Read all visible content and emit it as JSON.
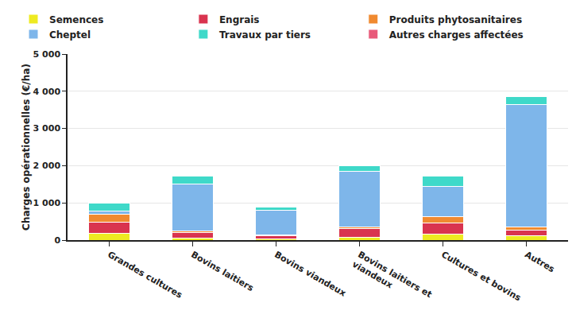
{
  "chart_data": {
    "type": "bar",
    "stacked": true,
    "grid": true,
    "legend": "top",
    "y_label": "Charges opérationnelles (€/ha)",
    "categories": [
      "Grandes cultures",
      "Bovins laitiers",
      "Bovins viandeux",
      "Bovins laitiers et viandeux",
      "Cultures et bovins",
      "Autres"
    ],
    "ylim": [
      0,
      5000
    ],
    "yticks": [
      0,
      {
        "value": 1000,
        "label": "1 000"
      },
      {
        "value": 2000,
        "label": "2 000"
      },
      {
        "value": 3000,
        "label": "3 000"
      },
      {
        "value": 4000,
        "label": "4 000"
      },
      {
        "value": 5000,
        "label": "5 000"
      }
    ],
    "series": [
      {
        "name": "Semences",
        "color": "#eeea22",
        "values": [
          180,
          50,
          30,
          70,
          160,
          110
        ]
      },
      {
        "name": "Engrais",
        "color": "#d9344f",
        "values": [
          310,
          160,
          90,
          240,
          310,
          160
        ]
      },
      {
        "name": "Produits phytosanitaires",
        "color": "#f08a30",
        "values": [
          200,
          40,
          10,
          40,
          160,
          90
        ]
      },
      {
        "name": "Cheptel",
        "color": "#7eb6ea",
        "values": [
          90,
          1250,
          670,
          1500,
          820,
          3290
        ]
      },
      {
        "name": "Travaux par tiers",
        "color": "#3fd9c9",
        "values": [
          220,
          230,
          90,
          150,
          270,
          200
        ]
      },
      {
        "name": "Autres charges affectées",
        "color": "#e85a7a",
        "values": [
          5,
          5,
          5,
          5,
          5,
          5
        ]
      }
    ]
  }
}
